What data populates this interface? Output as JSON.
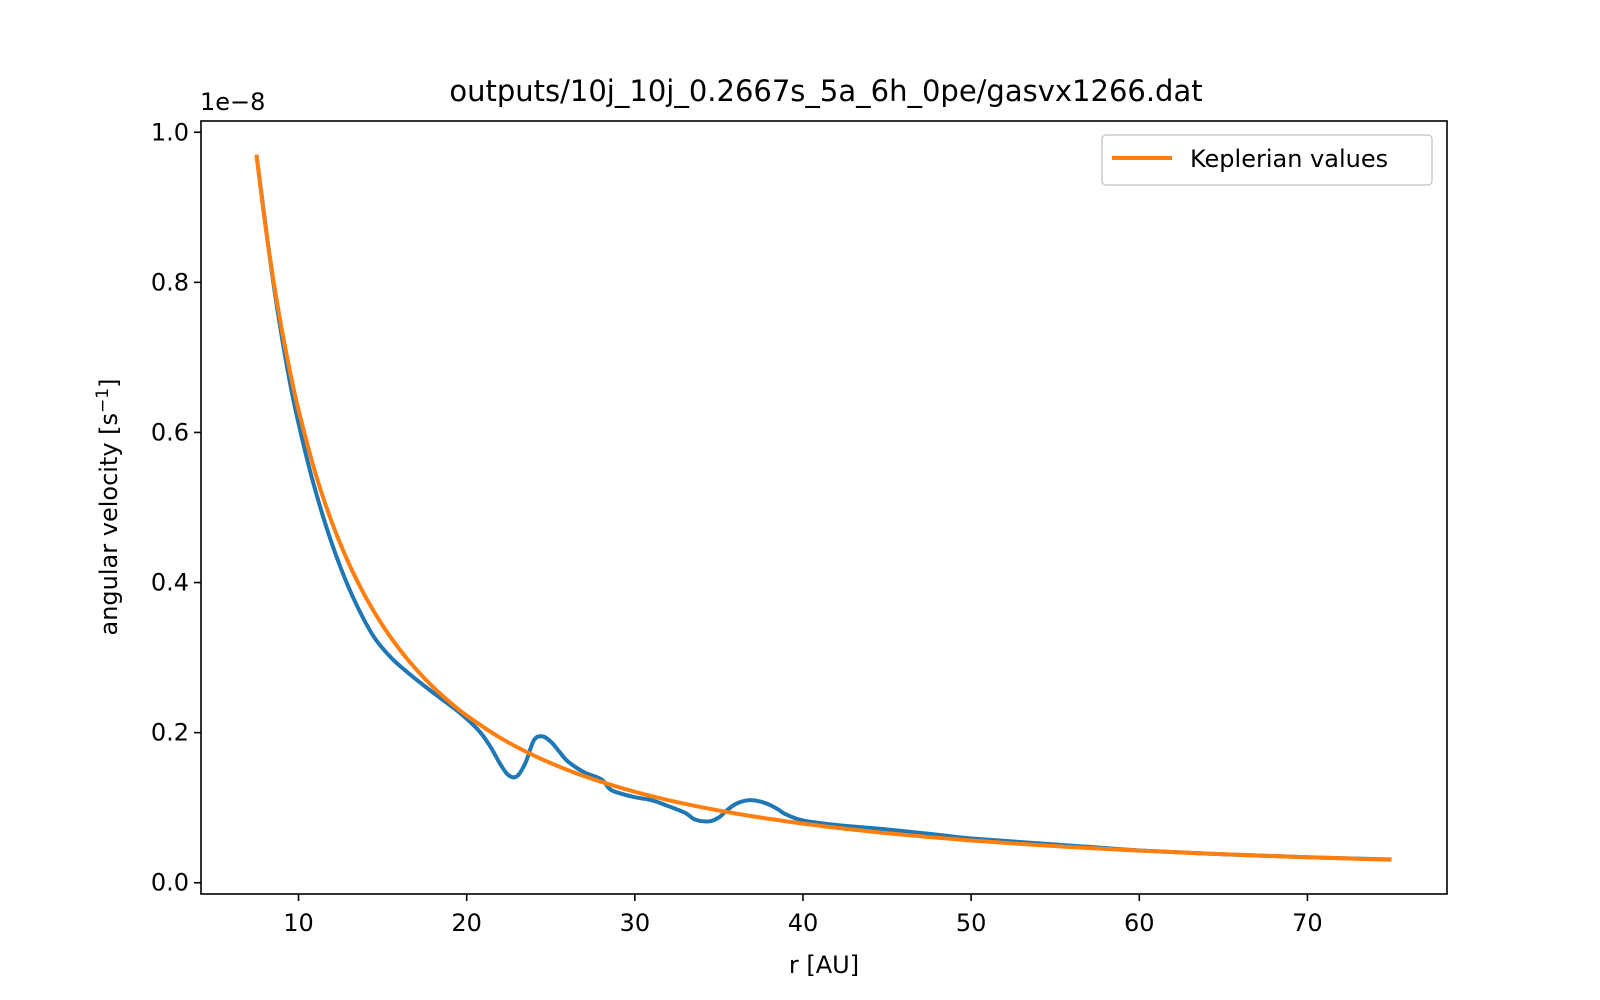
{
  "chart_data": {
    "type": "line",
    "title": "outputs/10j_10j_0.2667s_5a_6h_0pe/gasvx1266.dat",
    "xlabel": "r [AU]",
    "ylabel_main": "angular velocity [s",
    "ylabel_sup": "−1",
    "ylabel_end": "]",
    "offset_text": "1e−8",
    "xlim": [
      4.2,
      78.3
    ],
    "ylim": [
      -0.015,
      1.015
    ],
    "xticks": [
      10,
      20,
      30,
      40,
      50,
      60,
      70
    ],
    "yticks": [
      0.0,
      0.2,
      0.4,
      0.6,
      0.8,
      1.0
    ],
    "ytick_labels": [
      "0.0",
      "0.2",
      "0.4",
      "0.6",
      "0.8",
      "1.0"
    ],
    "legend_position": "top-right",
    "grid": false,
    "series": [
      {
        "color": "#1f77b4",
        "x": [
          7.5,
          8.5,
          9.5,
          10.5,
          11.5,
          12.5,
          13.5,
          14.5,
          15.5,
          16.5,
          17.5,
          18.5,
          19.5,
          20.5,
          21.0,
          21.5,
          22.0,
          22.5,
          23.0,
          23.5,
          24.0,
          24.5,
          25.0,
          25.5,
          26.0,
          27.0,
          28.0,
          28.5,
          29.0,
          30.0,
          31.0,
          32.0,
          33.0,
          33.5,
          34.0,
          34.5,
          35.0,
          35.5,
          36.0,
          36.5,
          37.0,
          37.5,
          38.0,
          38.5,
          39.0,
          40.0,
          42.0,
          45.0,
          48.0,
          50.0,
          55.0,
          60.0,
          65.0,
          70.0,
          75.0
        ],
        "y": [
          0.97,
          0.8,
          0.665,
          0.565,
          0.485,
          0.42,
          0.368,
          0.327,
          0.3,
          0.28,
          0.262,
          0.245,
          0.228,
          0.208,
          0.195,
          0.178,
          0.158,
          0.143,
          0.142,
          0.16,
          0.19,
          0.195,
          0.188,
          0.175,
          0.162,
          0.147,
          0.138,
          0.125,
          0.12,
          0.114,
          0.11,
          0.102,
          0.093,
          0.085,
          0.082,
          0.082,
          0.087,
          0.097,
          0.105,
          0.109,
          0.11,
          0.108,
          0.104,
          0.098,
          0.091,
          0.083,
          0.077,
          0.071,
          0.064,
          0.059,
          0.051,
          0.043,
          0.038,
          0.034,
          0.031
        ]
      },
      {
        "name": "Keplerian values",
        "color": "#ff7f0e",
        "x": [
          7.5,
          8.0,
          8.5,
          9.0,
          9.5,
          10.0,
          11.0,
          12.0,
          13.0,
          14.0,
          15.0,
          16.0,
          17.0,
          18.0,
          19.0,
          20.0,
          22.0,
          24.0,
          26.0,
          28.0,
          30.0,
          32.0,
          34.0,
          36.0,
          38.0,
          40.0,
          42.5,
          45.0,
          47.5,
          50.0,
          52.5,
          55.0,
          57.5,
          60.0,
          62.5,
          65.0,
          67.5,
          70.0,
          72.5,
          75.0
        ]
      }
    ]
  }
}
